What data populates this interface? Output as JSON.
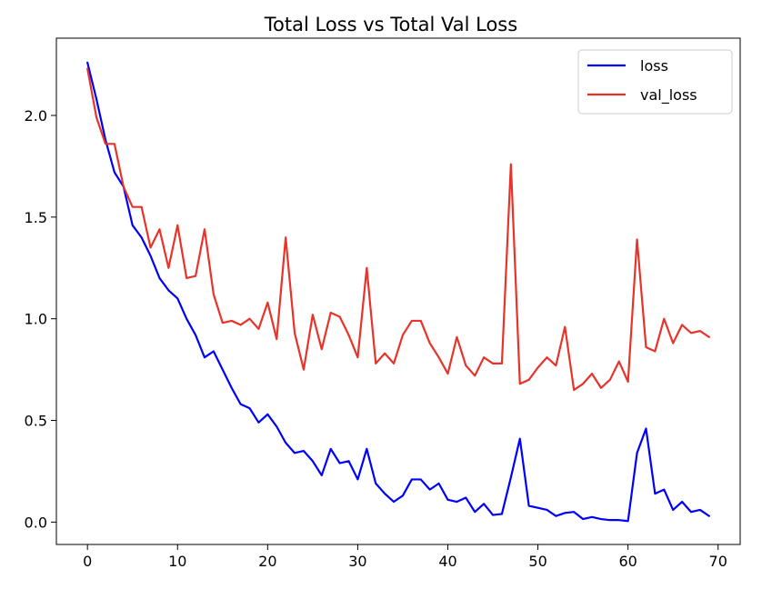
{
  "chart_data": {
    "type": "line",
    "title": "Total Loss vs Total Val Loss",
    "xlabel": "",
    "ylabel": "",
    "xlim": [
      -3.45,
      72.45
    ],
    "ylim": [
      -0.11,
      2.38
    ],
    "xticks": [
      0,
      10,
      20,
      30,
      40,
      50,
      60,
      70
    ],
    "yticks": [
      0.0,
      0.5,
      1.0,
      1.5,
      2.0
    ],
    "ytick_labels": [
      "0.0",
      "0.5",
      "1.0",
      "1.5",
      "2.0"
    ],
    "legend_position": "top-right",
    "series": [
      {
        "name": "loss",
        "color": "#0000ff",
        "x": [
          0,
          1,
          2,
          3,
          4,
          5,
          6,
          7,
          8,
          9,
          10,
          11,
          12,
          13,
          14,
          15,
          16,
          17,
          18,
          19,
          20,
          21,
          22,
          23,
          24,
          25,
          26,
          27,
          28,
          29,
          30,
          31,
          32,
          33,
          34,
          35,
          36,
          37,
          38,
          39,
          40,
          41,
          42,
          43,
          44,
          45,
          46,
          47,
          48,
          49,
          50,
          51,
          52,
          53,
          54,
          55,
          56,
          57,
          58,
          59,
          60,
          61,
          62,
          63,
          64,
          65,
          66,
          67,
          68,
          69
        ],
        "values": [
          2.26,
          2.08,
          1.88,
          1.72,
          1.65,
          1.46,
          1.4,
          1.31,
          1.2,
          1.14,
          1.1,
          1.0,
          0.92,
          0.81,
          0.84,
          0.75,
          0.66,
          0.58,
          0.56,
          0.49,
          0.53,
          0.47,
          0.39,
          0.34,
          0.35,
          0.3,
          0.23,
          0.36,
          0.29,
          0.3,
          0.21,
          0.36,
          0.19,
          0.14,
          0.1,
          0.13,
          0.21,
          0.21,
          0.16,
          0.19,
          0.11,
          0.1,
          0.12,
          0.05,
          0.09,
          0.035,
          0.04,
          0.22,
          0.41,
          0.08,
          0.07,
          0.06,
          0.03,
          0.045,
          0.05,
          0.015,
          0.025,
          0.015,
          0.01,
          0.01,
          0.005,
          0.34,
          0.46,
          0.14,
          0.16,
          0.06,
          0.1,
          0.05,
          0.06,
          0.03
        ]
      },
      {
        "name": "val_loss",
        "color": "#e8332a",
        "x": [
          0,
          1,
          2,
          3,
          4,
          5,
          6,
          7,
          8,
          9,
          10,
          11,
          12,
          13,
          14,
          15,
          16,
          17,
          18,
          19,
          20,
          21,
          22,
          23,
          24,
          25,
          26,
          27,
          28,
          29,
          30,
          31,
          32,
          33,
          34,
          35,
          36,
          37,
          38,
          39,
          40,
          41,
          42,
          43,
          44,
          45,
          46,
          47,
          48,
          49,
          50,
          51,
          52,
          53,
          54,
          55,
          56,
          57,
          58,
          59,
          60,
          61,
          62,
          63,
          64,
          65,
          66,
          67,
          68,
          69
        ],
        "values": [
          2.23,
          1.99,
          1.86,
          1.86,
          1.65,
          1.55,
          1.55,
          1.35,
          1.44,
          1.25,
          1.46,
          1.2,
          1.21,
          1.44,
          1.12,
          0.98,
          0.99,
          0.97,
          1.0,
          0.95,
          1.08,
          0.9,
          1.4,
          0.93,
          0.75,
          1.02,
          0.85,
          1.03,
          1.01,
          0.92,
          0.81,
          1.25,
          0.78,
          0.83,
          0.78,
          0.92,
          0.99,
          0.99,
          0.88,
          0.81,
          0.73,
          0.91,
          0.77,
          0.72,
          0.81,
          0.78,
          0.78,
          1.76,
          0.68,
          0.7,
          0.76,
          0.81,
          0.77,
          0.96,
          0.65,
          0.68,
          0.73,
          0.66,
          0.7,
          0.79,
          0.69,
          1.39,
          0.86,
          0.84,
          1.0,
          0.88,
          0.97,
          0.93,
          0.94,
          0.91
        ]
      }
    ]
  }
}
